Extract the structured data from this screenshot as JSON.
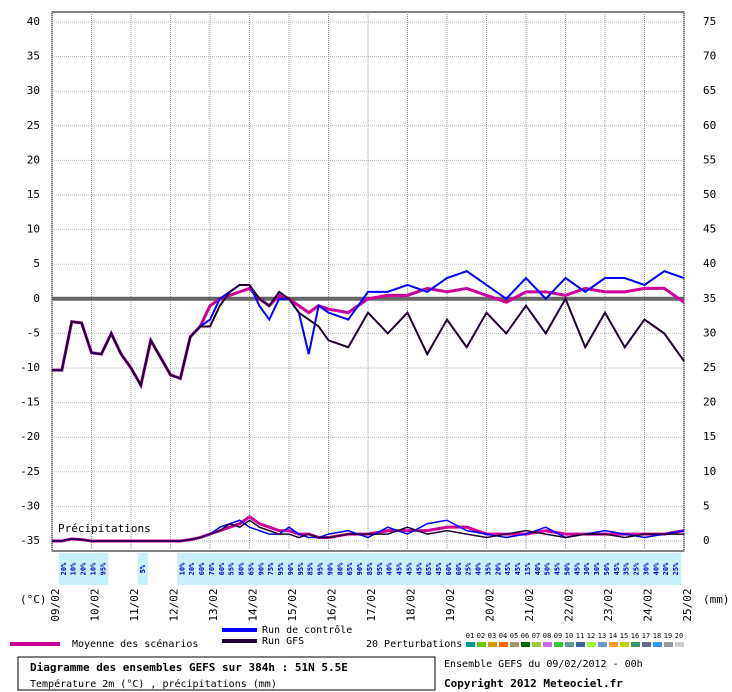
{
  "chart_data": {
    "type": "line",
    "xlim": [
      0,
      16
    ],
    "xticks": [
      {
        "value": 0,
        "label": "09/02"
      },
      {
        "value": 1,
        "label": "10/02"
      },
      {
        "value": 2,
        "label": "11/02"
      },
      {
        "value": 3,
        "label": "12/02"
      },
      {
        "value": 4,
        "label": "13/02"
      },
      {
        "value": 5,
        "label": "14/02"
      },
      {
        "value": 6,
        "label": "15/02"
      },
      {
        "value": 7,
        "label": "16/02"
      },
      {
        "value": 8,
        "label": "17/02"
      },
      {
        "value": 9,
        "label": "18/02"
      },
      {
        "value": 10,
        "label": "19/02"
      },
      {
        "value": 11,
        "label": "20/02"
      },
      {
        "value": 12,
        "label": "21/02"
      },
      {
        "value": 13,
        "label": "22/02"
      },
      {
        "value": 14,
        "label": "23/02"
      },
      {
        "value": 15,
        "label": "24/02"
      },
      {
        "value": 16,
        "label": "25/02"
      }
    ],
    "ylim": [
      -35,
      40
    ],
    "yticks": [
      -35,
      -30,
      -25,
      -20,
      -15,
      -10,
      -5,
      0,
      5,
      10,
      15,
      20,
      25,
      30,
      35,
      40
    ],
    "y2lim": [
      0,
      75
    ],
    "y2ticks": [
      0,
      5,
      10,
      15,
      20,
      25,
      30,
      35,
      40,
      45,
      50,
      55,
      60,
      65,
      70,
      75
    ],
    "ylabel": "(°C)",
    "y2label": "(mm)",
    "grid": true,
    "reference_line": 0,
    "precip_label": "Précipitations",
    "x": [
      0,
      0.25,
      0.5,
      0.75,
      1,
      1.25,
      1.5,
      1.75,
      2,
      2.25,
      2.5,
      2.75,
      3,
      3.25,
      3.5,
      3.75,
      4,
      4.25,
      4.5,
      4.75,
      5,
      5.25,
      5.5,
      5.75,
      6,
      6.25,
      6.5,
      6.75,
      7,
      7.5,
      8,
      8.5,
      9,
      9.5,
      10,
      10.5,
      11,
      11.5,
      12,
      12.5,
      13,
      13.5,
      14,
      14.5,
      15,
      15.5,
      16
    ],
    "series": [
      {
        "name": "Moyenne des scénarios",
        "color": "#cc0099",
        "width": 3,
        "values": [
          -10.3,
          -10.3,
          -3.3,
          -3.5,
          -7.8,
          -8,
          -5,
          -8,
          -10,
          -12.5,
          -6,
          -8.5,
          -11,
          -11.5,
          -5.5,
          -4,
          -1,
          0,
          0.5,
          1,
          1.5,
          0,
          -1,
          0.5,
          0,
          -1,
          -2,
          -1,
          -1.5,
          -2,
          0,
          0.5,
          0.5,
          1.5,
          1,
          1.5,
          0.5,
          -0.5,
          1,
          1,
          0.5,
          1.5,
          1,
          1,
          1.5,
          1.5,
          -0.5
        ]
      },
      {
        "name": "Run de contrôle",
        "color": "#0000ff",
        "width": 2,
        "values": [
          -10.3,
          -10.3,
          -3.3,
          -3.5,
          -7.8,
          -8,
          -5,
          -8,
          -10,
          -12.5,
          -6,
          -8.5,
          -11,
          -11.5,
          -5.5,
          -4,
          -3,
          0,
          1,
          2,
          2,
          -1,
          -3,
          0,
          0,
          -2,
          -8,
          -1,
          -2,
          -3,
          1,
          1,
          2,
          1,
          3,
          4,
          2,
          0,
          3,
          0,
          3,
          1,
          3,
          3,
          2,
          4,
          3
        ]
      },
      {
        "name": "Run GFS",
        "color": "#220033",
        "width": 2,
        "values": [
          -10.3,
          -10.3,
          -3.3,
          -3.5,
          -7.8,
          -8,
          -5,
          -8,
          -10,
          -12.5,
          -6,
          -8.5,
          -11,
          -11.5,
          -5.5,
          -4,
          -4,
          -1,
          1,
          2,
          2,
          0,
          -1,
          1,
          0,
          -2,
          -3,
          -4,
          -6,
          -7,
          -2,
          -5,
          -2,
          -8,
          -3,
          -7,
          -2,
          -5,
          -1,
          -5,
          0,
          -7,
          -2,
          -7,
          -3,
          -5,
          -9
        ]
      },
      {
        "name": "Moyenne des scénarios",
        "color": "#cc0099",
        "width": 3,
        "axis": "y2",
        "values": [
          0,
          0,
          0.3,
          0.2,
          0,
          0,
          0,
          0,
          0,
          0,
          0,
          0,
          0,
          0,
          0.2,
          0.5,
          1,
          1.5,
          2,
          2.5,
          3.5,
          2.5,
          2,
          1.5,
          1.5,
          1,
          1,
          0.5,
          0.5,
          1,
          1,
          1.5,
          1.5,
          1.5,
          2,
          2,
          1,
          1,
          1,
          1.5,
          1,
          1,
          1,
          1,
          1,
          1,
          1.5
        ]
      },
      {
        "name": "Run de contrôle",
        "color": "#0000ff",
        "width": 1.5,
        "axis": "y2",
        "values": [
          0,
          0,
          0.3,
          0.2,
          0,
          0,
          0,
          0,
          0,
          0,
          0,
          0,
          0,
          0,
          0.2,
          0.5,
          1,
          2,
          2.5,
          3,
          2,
          1.5,
          1,
          1,
          2,
          1,
          0.5,
          0.5,
          1,
          1.5,
          0.5,
          2,
          1,
          2.5,
          3,
          1.5,
          1,
          0.5,
          1,
          2,
          0.5,
          1,
          1.5,
          1,
          0.5,
          1,
          1.5
        ]
      },
      {
        "name": "Run GFS",
        "color": "#220033",
        "width": 1.5,
        "axis": "y2",
        "values": [
          0,
          0,
          0.3,
          0.2,
          0,
          0,
          0,
          0,
          0,
          0,
          0,
          0,
          0,
          0,
          0.2,
          0.5,
          1,
          1.5,
          2.5,
          2,
          3,
          2,
          1.5,
          1,
          1,
          0.5,
          1,
          0.5,
          0.5,
          1,
          1,
          1,
          2,
          1,
          1.5,
          1,
          0.5,
          1,
          1.5,
          1,
          0.5,
          1,
          1,
          0.5,
          1,
          1,
          1
        ]
      }
    ],
    "precip_prob": {
      "x": [
        0.3,
        0.55,
        0.8,
        1.05,
        1.3,
        2.3,
        3.3,
        3.55,
        3.8,
        4.05,
        4.3,
        4.55,
        4.8,
        5.05,
        5.3,
        5.55,
        5.8,
        6.05,
        6.3,
        6.55,
        6.8,
        7.05,
        7.3,
        7.55,
        7.8,
        8.05,
        8.3,
        8.55,
        8.8,
        9.05,
        9.3,
        9.55,
        9.8,
        10.05,
        10.3,
        10.55,
        10.8,
        11.05,
        11.3,
        11.55,
        11.8,
        12.05,
        12.3,
        12.55,
        12.8,
        13.05,
        13.3,
        13.55,
        13.8,
        14.05,
        14.3,
        14.55,
        14.8,
        15.05,
        15.3,
        15.55,
        15.8
      ],
      "labels": [
        "20%",
        "10%",
        "20%",
        "10%",
        "95%",
        "5%",
        "10%",
        "20%",
        "60%",
        "70%",
        "60%",
        "55%",
        "80%",
        "65%",
        "90%",
        "75%",
        "95%",
        "90%",
        "95%",
        "85%",
        "95%",
        "90%",
        "80%",
        "65%",
        "90%",
        "85%",
        "95%",
        "40%",
        "45%",
        "45%",
        "45%",
        "65%",
        "45%",
        "60%",
        "60%",
        "25%",
        "40%",
        "35%",
        "20%",
        "45%",
        "45%",
        "15%",
        "40%",
        "50%",
        "45%",
        "50%",
        "45%",
        "30%",
        "30%",
        "50%",
        "45%",
        "35%",
        "25%",
        "30%",
        "40%",
        "20%",
        "25%"
      ]
    },
    "perturbation_legend": {
      "title": "20 Perturbations",
      "items": [
        {
          "label": "01",
          "color": "#009999"
        },
        {
          "label": "02",
          "color": "#66cc00"
        },
        {
          "label": "03",
          "color": "#cc9900"
        },
        {
          "label": "04",
          "color": "#ff6600"
        },
        {
          "label": "05",
          "color": "#999966"
        },
        {
          "label": "06",
          "color": "#006600"
        },
        {
          "label": "07",
          "color": "#99cc33"
        },
        {
          "label": "08",
          "color": "#cc66ff"
        },
        {
          "label": "09",
          "color": "#33cc33"
        },
        {
          "label": "10",
          "color": "#669999"
        },
        {
          "label": "11",
          "color": "#336699"
        },
        {
          "label": "12",
          "color": "#99ff33"
        },
        {
          "label": "13",
          "color": "#6699cc"
        },
        {
          "label": "14",
          "color": "#ff9933"
        },
        {
          "label": "15",
          "color": "#cccc00"
        },
        {
          "label": "16",
          "color": "#339966"
        },
        {
          "label": "17",
          "color": "#666699"
        },
        {
          "label": "18",
          "color": "#3399ff"
        },
        {
          "label": "19",
          "color": "#999999"
        },
        {
          "label": "20",
          "color": "#cccccc"
        }
      ]
    },
    "footer": {
      "title": "Diagramme des ensembles GEFS sur 384h : 51N 5.5E",
      "subtitle": "Température 2m (°C) , précipitations (mm)",
      "run": "Ensemble GEFS du 09/02/2012 - 00h",
      "copyright": "Copyright 2012 Meteociel.fr"
    }
  }
}
